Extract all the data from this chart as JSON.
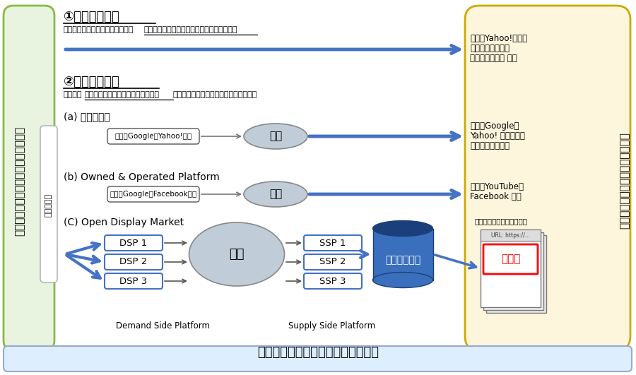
{
  "bg_color": "#ffffff",
  "left_box_color": "#e8f4e0",
  "left_box_border": "#88bb44",
  "right_box_color": "#fdf6dc",
  "right_box_border": "#ccaa00",
  "bottom_box_color": "#ddeeff",
  "bottom_box_border": "#99aacc",
  "arrow_color": "#4472c4",
  "ellipse_color": "#c0ccd8",
  "ellipse_border": "#888888",
  "dsp_box_border": "#4472c4",
  "ssp_box_border": "#4472c4",
  "ad_server_body": "#3a6fbe",
  "ad_server_top": "#1a3f7a",
  "page_colors": [
    "#e8e8e8",
    "#f0f0f0",
    "#ffffff"
  ],
  "title": "仲介（プラットフォーム事業者等）",
  "left_main_text": "広告主（広告枠を買って広告を出稿）",
  "right_main_text": "パブリッシャー（広告枠を販売）",
  "agency_text": "広告代理店",
  "section1_title": "①予約型広告：",
  "section1_sub1": "契約の時点で、広告の出稿に係る",
  "section1_sub2": "条件（価格、掲載期間、掲載場所等）が確定",
  "section2_title": "②運用型広告：",
  "section2_sub1": "契約後、",
  "section2_sub2": "出稿に係る条件を変更しながら運用",
  "section2_sub3": "（例：入札によって広告単価等が決定）",
  "section_a_title": "(a) 検索連動型",
  "section_b_title": "(b) Owned & Operated Platform",
  "section_c_title": "(C) Open Display Market",
  "example_a": "［例：Google、Yahoo!等］",
  "example_b": "［例：Google、Facebook等］",
  "nyusatsu": "入札",
  "right_ex1_line1": "［例：Yahoo!ポータ",
  "right_ex1_line2": "ルサイトのトップ",
  "right_ex1_line3": "ページの広告枠 等］",
  "right_ex2_line1": "［例：Google、",
  "right_ex2_line2": "Yahoo! 等が提供す",
  "right_ex2_line3": "る検索サービス］",
  "right_ex3_line1": "［例：YouTube、",
  "right_ex3_line2": "Facebook 等］",
  "other_site": "［その他サイト／アプリ］",
  "url_text": "URL: https://...",
  "ad_frame_text": "広告枠",
  "ad_server_text": "アドサーバー",
  "demand_text": "Demand Side Platform",
  "supply_text": "Supply Side Platform"
}
